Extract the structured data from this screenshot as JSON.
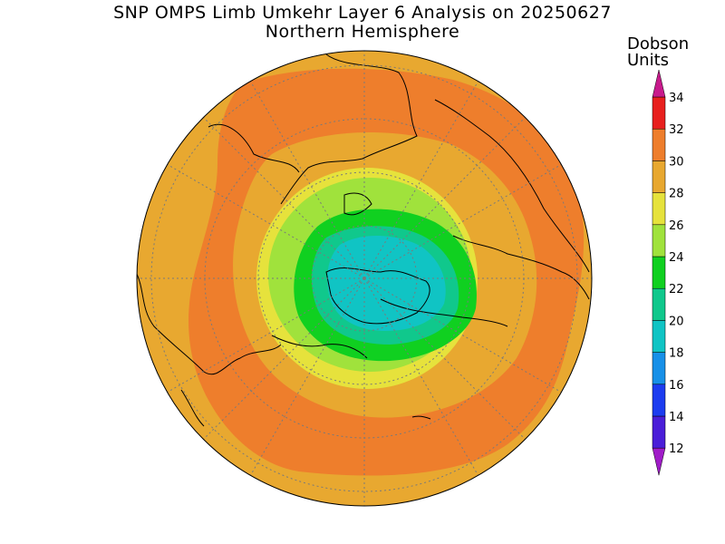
{
  "title": "SNP OMPS Limb Umkehr Layer 6 Analysis on 20250627",
  "subtitle": "Northern Hemisphere",
  "colorbar": {
    "units_line1": "Dobson",
    "units_line2": "Units",
    "levels": [
      12,
      14,
      16,
      18,
      20,
      22,
      24,
      26,
      28,
      30,
      32,
      34
    ],
    "colors": [
      "#7a10c8",
      "#4a1ed8",
      "#1c3cf0",
      "#1790e8",
      "#10c4c4",
      "#10c88c",
      "#10d020",
      "#a0e23c",
      "#e6e23c",
      "#e8a830",
      "#ee7e2c",
      "#e8201e"
    ],
    "under_color": "#a01cc8",
    "over_color": "#c81a8c"
  },
  "map": {
    "projection": "north-polar-stereographic",
    "field_rings_DU": [
      30,
      28,
      26,
      24,
      22,
      20
    ],
    "ring_colors": [
      "#e8a830",
      "#ee7e2c",
      "#e8a830",
      "#e6e23c",
      "#a0e23c",
      "#10d020",
      "#10c88c",
      "#10c4c4"
    ]
  }
}
